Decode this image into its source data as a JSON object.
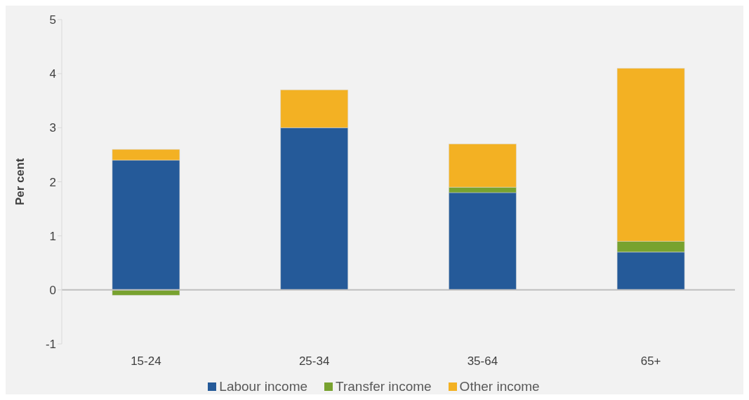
{
  "chart_data": {
    "type": "bar",
    "stacked": true,
    "ylabel": "Per cent",
    "categories": [
      "15-24",
      "25-34",
      "35-64",
      "65+"
    ],
    "series": [
      {
        "name": "Labour income",
        "color": "#255a99",
        "values": [
          2.4,
          3.0,
          1.8,
          0.7
        ]
      },
      {
        "name": "Transfer income",
        "color": "#78a22f",
        "values": [
          -0.1,
          0,
          0.1,
          0.2
        ]
      },
      {
        "name": "Other income",
        "color": "#f3b123",
        "values": [
          0.2,
          0.7,
          0.8,
          3.2
        ]
      }
    ],
    "ref_lines": [
      {
        "axis": "y",
        "value": 0,
        "color": "#bfbfbf"
      }
    ],
    "ylim": [
      -1,
      5
    ],
    "yticks": [
      -1,
      0,
      1,
      2,
      3,
      4,
      5
    ],
    "grid": false,
    "legend": "bottom"
  }
}
